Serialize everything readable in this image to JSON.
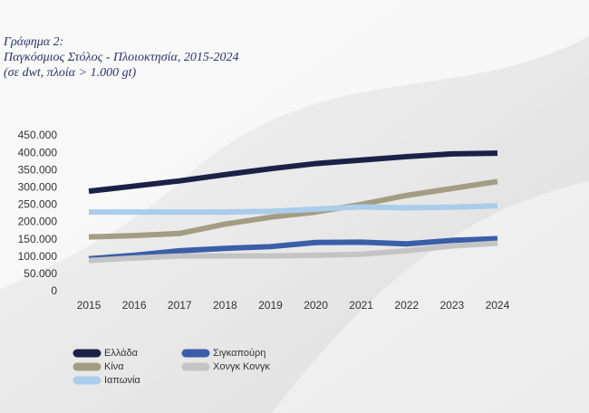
{
  "chart_data": {
    "type": "line",
    "title": [
      "Γράφημα 2:",
      "Παγκόσμιος Στόλος - Πλοιοκτησία, 2015-2024",
      "(σε dwt, πλοία > 1.000 gt)"
    ],
    "x": [
      2015,
      2016,
      2017,
      2018,
      2019,
      2020,
      2021,
      2022,
      2023,
      2024
    ],
    "xlim": [
      2014.44,
      2024.62
    ],
    "xticks": [
      2015,
      2016,
      2017,
      2018,
      2019,
      2020,
      2021,
      2022,
      2023,
      2024
    ],
    "ylim": [
      0,
      450000
    ],
    "yticks": [
      0,
      {
        "value": 50000,
        "label": "50.000"
      },
      {
        "value": 100000,
        "label": "100.000"
      },
      {
        "value": 150000,
        "label": "150.000"
      },
      {
        "value": 200000,
        "label": "200.000"
      },
      {
        "value": 250000,
        "label": "250.000"
      },
      {
        "value": 300000,
        "label": "300.000"
      },
      {
        "value": 350000,
        "label": "350.000"
      },
      {
        "value": 400000,
        "label": "400.000"
      },
      {
        "value": 450000,
        "label": "450.000"
      }
    ],
    "series": [
      {
        "name": "Ελλάδα",
        "color": "#1b2147",
        "values": [
          290000,
          305000,
          320000,
          338000,
          355000,
          370000,
          380000,
          390000,
          398000,
          400000
        ]
      },
      {
        "name": "Κίνα",
        "color": "#a59d83",
        "values": [
          158000,
          162000,
          168000,
          195000,
          215000,
          230000,
          252000,
          278000,
          298000,
          318000
        ]
      },
      {
        "name": "Ιαπωνία",
        "color": "#a9cdea",
        "values": [
          230000,
          230000,
          230000,
          230000,
          232000,
          238000,
          245000,
          242000,
          244000,
          248000
        ]
      },
      {
        "name": "Σιγκαπούρη",
        "color": "#3a5ea8",
        "values": [
          95000,
          105000,
          118000,
          125000,
          130000,
          142000,
          143000,
          138000,
          148000,
          153000
        ]
      },
      {
        "name": "Χονγκ Κονγκ",
        "color": "#c4c4c4",
        "values": [
          90000,
          97000,
          103000,
          103000,
          103000,
          105000,
          108000,
          118000,
          132000,
          140000
        ]
      }
    ]
  }
}
